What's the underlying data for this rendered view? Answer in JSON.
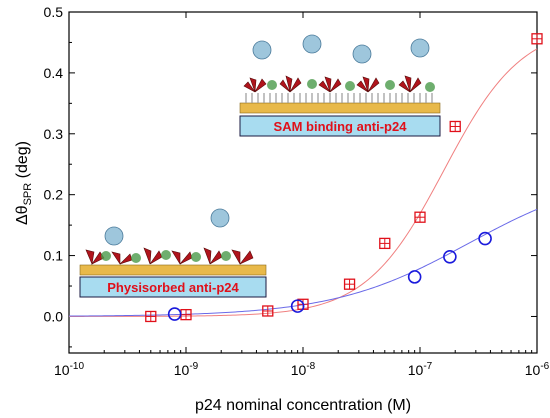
{
  "chart_data": {
    "type": "scatter",
    "xscale": "log",
    "xlim": [
      1e-10,
      1e-06
    ],
    "ylim": [
      -0.06,
      0.5
    ],
    "xlabel": "p24 nominal concentration (M)",
    "ylabel": {
      "prefix": "Δθ",
      "sub": "SPR",
      "suffix": " (deg)"
    },
    "xticks": [
      {
        "value": 1e-10,
        "base": "10",
        "exp": "-10"
      },
      {
        "value": 1e-09,
        "base": "10",
        "exp": "-9"
      },
      {
        "value": 1e-08,
        "base": "10",
        "exp": "-8"
      },
      {
        "value": 1e-07,
        "base": "10",
        "exp": "-7"
      },
      {
        "value": 1e-06,
        "base": "10",
        "exp": "-6"
      }
    ],
    "yticks": [
      {
        "value": 0.0,
        "label": "0.0"
      },
      {
        "value": 0.1,
        "label": "0.1"
      },
      {
        "value": 0.2,
        "label": "0.2"
      },
      {
        "value": 0.3,
        "label": "0.3"
      },
      {
        "value": 0.4,
        "label": "0.4"
      },
      {
        "value": 0.5,
        "label": "0.5"
      }
    ],
    "grid": false,
    "series": [
      {
        "marker": "square-cross",
        "color": "#e0101a",
        "fit_color": "#f08080",
        "points": [
          {
            "x": 5e-10,
            "y": 0.0
          },
          {
            "x": 1e-09,
            "y": 0.003
          },
          {
            "x": 5e-09,
            "y": 0.009
          },
          {
            "x": 1e-08,
            "y": 0.02
          },
          {
            "x": 2.5e-08,
            "y": 0.053
          },
          {
            "x": 5e-08,
            "y": 0.12
          },
          {
            "x": 1e-07,
            "y": 0.163
          },
          {
            "x": 2e-07,
            "y": 0.312
          },
          {
            "x": 1e-06,
            "y": 0.456
          }
        ],
        "fit": {
          "model": "hill",
          "ymax": 0.48,
          "k": 1.6e-07,
          "n": 1.3
        }
      },
      {
        "marker": "circle",
        "color": "#1a1adc",
        "fit_color": "#6a6ae8",
        "points": [
          {
            "x": 8e-10,
            "y": 0.004
          },
          {
            "x": 9e-09,
            "y": 0.017
          },
          {
            "x": 9e-08,
            "y": 0.065
          },
          {
            "x": 1.8e-07,
            "y": 0.098
          },
          {
            "x": 3.6e-07,
            "y": 0.128
          }
        ],
        "fit": {
          "model": "hill",
          "ymax": 0.24,
          "k": 2.6e-07,
          "n": 0.75
        }
      }
    ],
    "insets": [
      {
        "label": "SAM binding anti-p24",
        "fill": "#a8dcf0",
        "text_color": "#e0101a"
      },
      {
        "label": "Physisorbed anti-p24",
        "fill": "#a8dcf0",
        "text_color": "#e0101a"
      }
    ]
  }
}
